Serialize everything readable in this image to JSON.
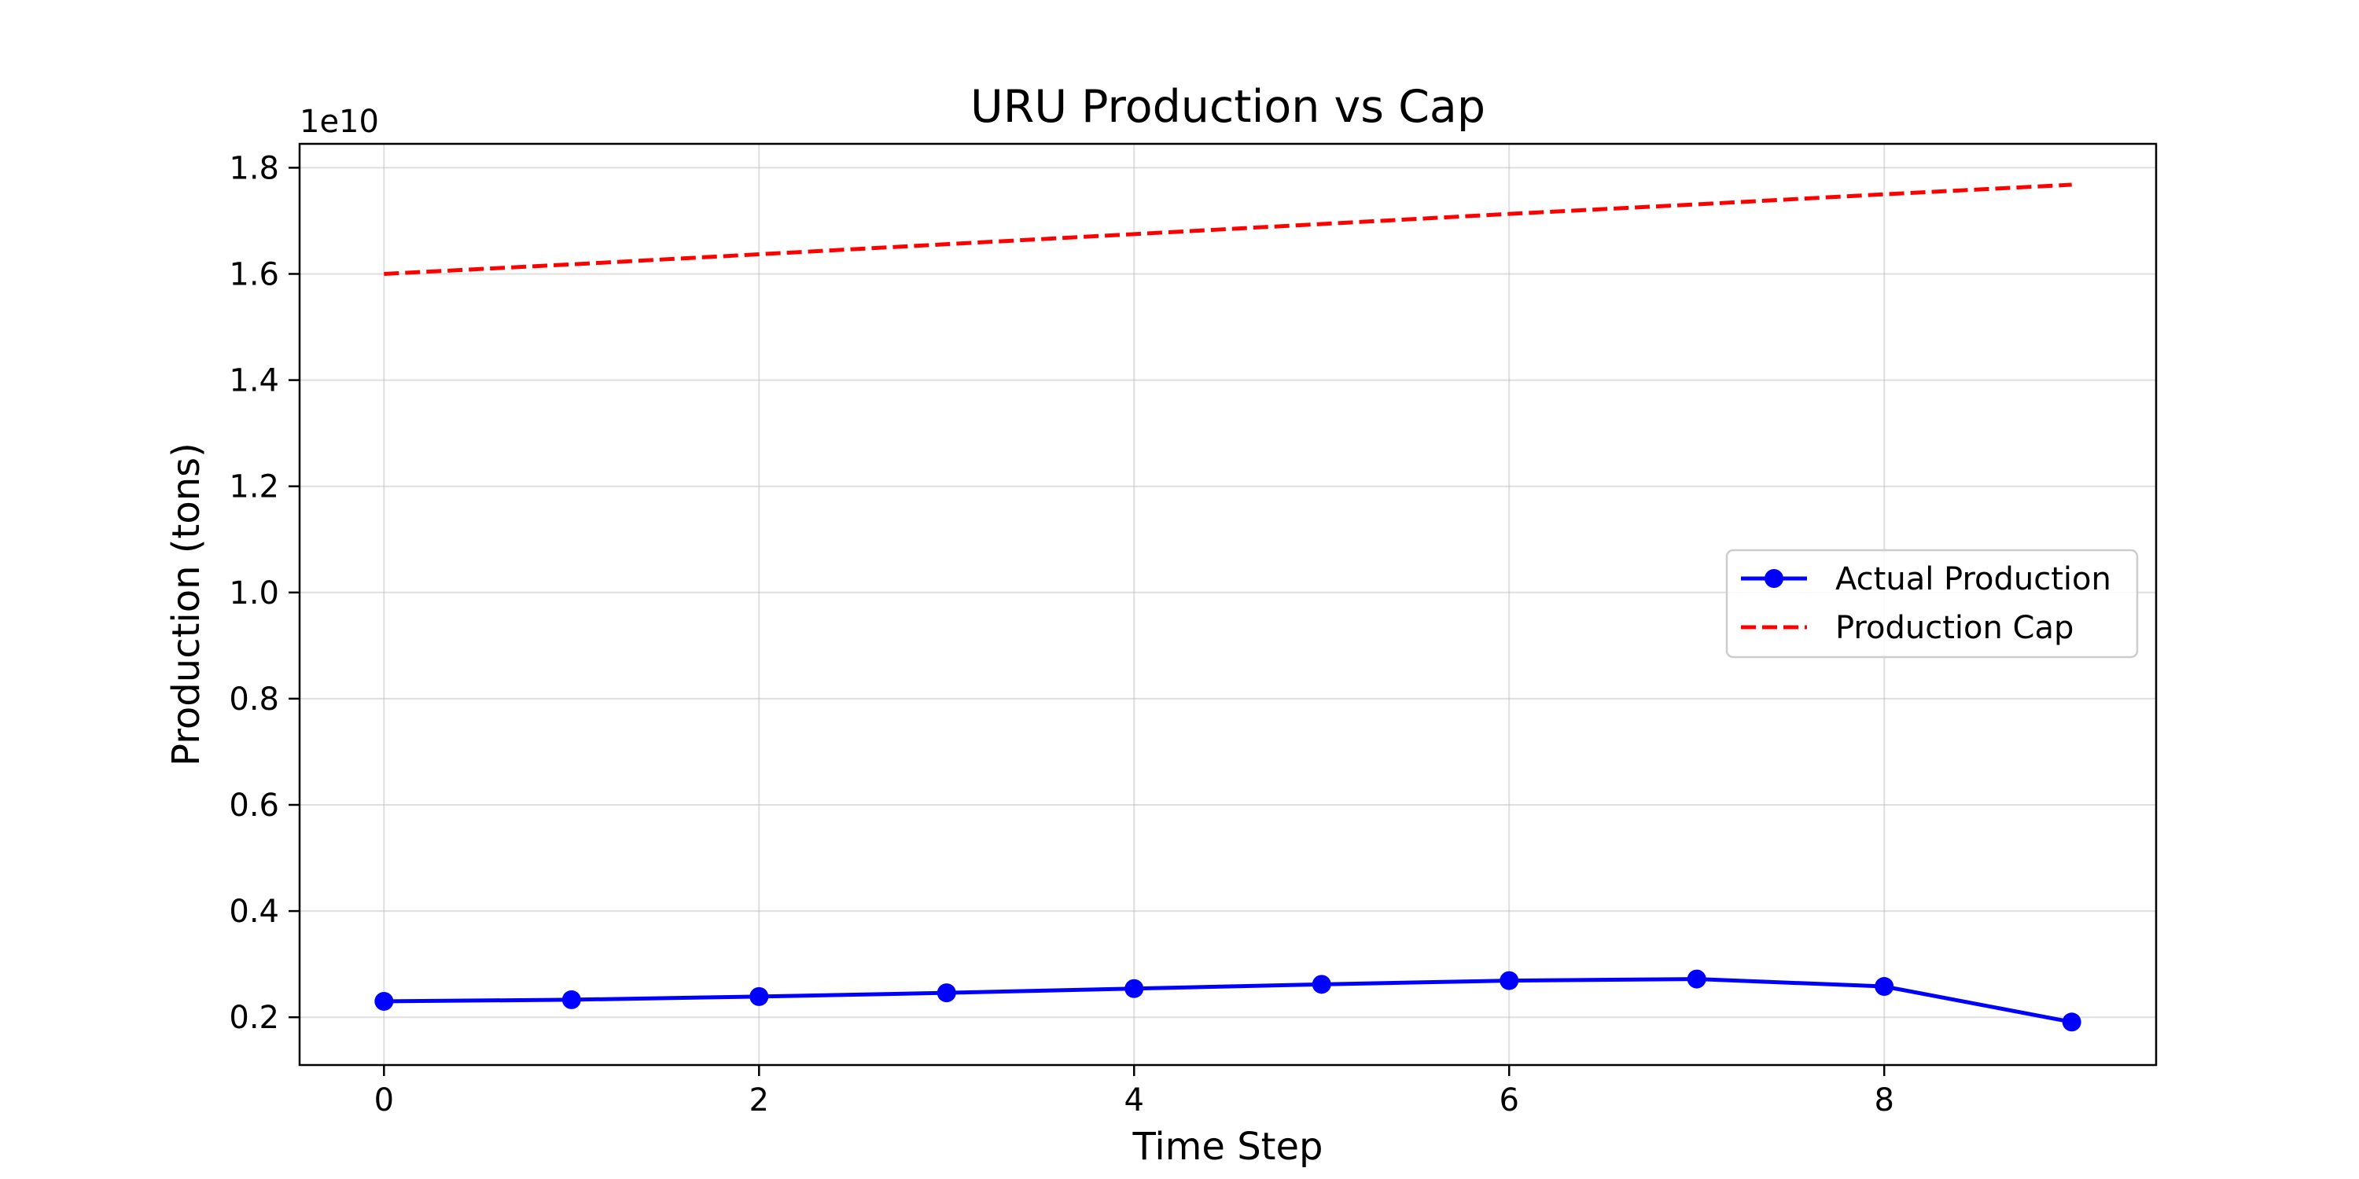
{
  "chart_data": {
    "type": "line",
    "title": "URU Production vs Cap",
    "xlabel": "Time Step",
    "ylabel": "Production (tons)",
    "y_offset_label": "1e10",
    "y_scale": 10000000000.0,
    "xlim": [
      -0.45,
      9.45
    ],
    "ylim": [
      1100000000.0,
      18450000000.0
    ],
    "x_ticks": [
      0,
      2,
      4,
      6,
      8
    ],
    "y_ticks": [
      2000000000.0,
      4000000000.0,
      6000000000.0,
      8000000000.0,
      10000000000.0,
      12000000000.0,
      14000000000.0,
      16000000000.0,
      18000000000.0
    ],
    "y_tick_labels": [
      "0.2",
      "0.4",
      "0.6",
      "0.8",
      "1.0",
      "1.2",
      "1.4",
      "1.6",
      "1.8"
    ],
    "grid": true,
    "legend_position": "center-right",
    "series": [
      {
        "name": "Actual Production",
        "style": "solid",
        "marker": "circle",
        "color": "#0000ff",
        "x": [
          0,
          1,
          2,
          3,
          4,
          5,
          6,
          7,
          8,
          9
        ],
        "values": [
          2300000000.0,
          2330000000.0,
          2390000000.0,
          2460000000.0,
          2540000000.0,
          2620000000.0,
          2690000000.0,
          2720000000.0,
          2580000000.0,
          1910000000.0
        ]
      },
      {
        "name": "Production Cap",
        "style": "dashed",
        "marker": "none",
        "color": "#ff0000",
        "x": [
          0,
          1,
          2,
          3,
          4,
          5,
          6,
          7,
          8,
          9
        ],
        "values": [
          16000000000.0,
          16180000000.0,
          16370000000.0,
          16560000000.0,
          16750000000.0,
          16940000000.0,
          17130000000.0,
          17310000000.0,
          17500000000.0,
          17680000000.0
        ]
      }
    ]
  }
}
